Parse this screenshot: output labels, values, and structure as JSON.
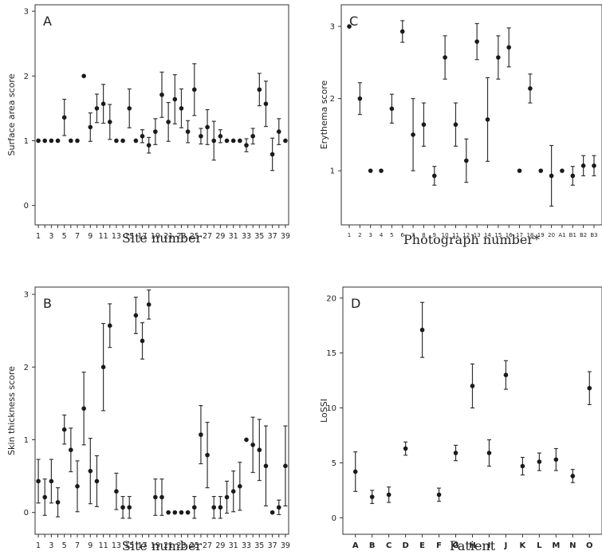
{
  "chart_data": [
    {
      "type": "scatter",
      "panel": "A",
      "xlabel": "Site number",
      "ylabel": "Surface area score",
      "ylim": [
        -0.3,
        3.1
      ],
      "yticks": [
        0,
        1,
        2,
        3
      ],
      "x_tick_labels": [
        "1",
        "3",
        "5",
        "7",
        "9",
        "11",
        "13",
        "15",
        "17",
        "19",
        "21",
        "23",
        "25",
        "27",
        "29",
        "31",
        "33",
        "35",
        "37",
        "39"
      ],
      "x": [
        1,
        2,
        3,
        4,
        5,
        6,
        7,
        8,
        9,
        10,
        11,
        12,
        13,
        14,
        15,
        16,
        17,
        18,
        19,
        20,
        21,
        22,
        23,
        24,
        25,
        26,
        27,
        28,
        29,
        30,
        31,
        32,
        33,
        34,
        35,
        36,
        37,
        38,
        39
      ],
      "values": [
        1,
        1,
        1,
        1,
        1.36,
        1,
        1,
        2,
        1.21,
        1.5,
        1.57,
        1.29,
        1,
        1,
        1.5,
        1,
        1.07,
        0.93,
        1.14,
        1.71,
        1.29,
        1.64,
        1.5,
        1.14,
        1.79,
        1.07,
        1.21,
        1,
        1.07,
        1,
        1,
        1,
        0.93,
        1.07,
        1.79,
        1.57,
        0.79,
        1.14,
        1
      ],
      "errors": [
        0,
        0,
        0,
        0,
        0.28,
        0,
        0,
        0,
        0.22,
        0.22,
        0.3,
        0.27,
        0,
        0,
        0.3,
        0,
        0.1,
        0.12,
        0.2,
        0.35,
        0.3,
        0.38,
        0.3,
        0.17,
        0.4,
        0.12,
        0.27,
        0.3,
        0.1,
        0,
        0,
        0,
        0.1,
        0.12,
        0.25,
        0.35,
        0.25,
        0.2,
        0
      ]
    },
    {
      "type": "scatter",
      "panel": "C",
      "xlabel": "Photograph number*",
      "ylabel": "Erythema score",
      "ylim": [
        0.25,
        3.3
      ],
      "yticks": [
        1,
        2,
        3
      ],
      "categories": [
        "1",
        "2",
        "3",
        "4",
        "5",
        "6",
        "7",
        "8",
        "9",
        "10",
        "11",
        "12",
        "13",
        "14",
        "15",
        "16",
        "17",
        "18",
        "19",
        "20",
        "A1",
        "B1",
        "B2",
        "B3"
      ],
      "values": [
        3,
        2,
        1,
        1,
        1.86,
        2.93,
        1.5,
        1.64,
        0.93,
        2.57,
        1.64,
        1.14,
        2.79,
        1.71,
        2.57,
        2.71,
        1,
        2.14,
        1,
        0.93,
        1,
        0.93,
        1.07,
        1.07
      ],
      "errors": [
        0,
        0.22,
        0,
        0,
        0.2,
        0.15,
        0.5,
        0.3,
        0.13,
        0.3,
        0.3,
        0.3,
        0.25,
        0.58,
        0.3,
        0.27,
        0,
        0.2,
        0,
        0.42,
        0,
        0.13,
        0.14,
        0.14
      ]
    },
    {
      "type": "scatter",
      "panel": "B",
      "xlabel": "Site number",
      "ylabel": "Skin thickness score",
      "ylim": [
        -0.3,
        3.1
      ],
      "yticks": [
        0,
        1,
        2,
        3
      ],
      "x_tick_labels": [
        "1",
        "3",
        "5",
        "7",
        "9",
        "11",
        "13",
        "15",
        "17",
        "19",
        "21",
        "23",
        "25",
        "27",
        "29",
        "31",
        "33",
        "35",
        "37",
        "39"
      ],
      "x": [
        1,
        2,
        3,
        4,
        5,
        6,
        7,
        8,
        9,
        10,
        11,
        12,
        13,
        14,
        15,
        16,
        17,
        18,
        19,
        20,
        21,
        22,
        23,
        24,
        25,
        26,
        27,
        28,
        29,
        30,
        31,
        32,
        33,
        34,
        35,
        36,
        37,
        38,
        39
      ],
      "values": [
        0.43,
        0.21,
        0.43,
        0.14,
        1.14,
        0.86,
        0.36,
        1.43,
        0.57,
        0.43,
        2,
        2.57,
        0.29,
        0.07,
        0.07,
        2.71,
        2.36,
        2.86,
        0.21,
        0.21,
        0,
        0,
        0,
        0,
        0.07,
        1.07,
        0.79,
        0.07,
        0.07,
        0.21,
        0.29,
        0.36,
        1,
        0.93,
        0.86,
        0.64,
        0,
        0.07,
        0.64
      ],
      "errors": [
        0.3,
        0.25,
        0.3,
        0.2,
        0.2,
        0.3,
        0.35,
        0.5,
        0.45,
        0.35,
        0.6,
        0.3,
        0.25,
        0.15,
        0.15,
        0.25,
        0.25,
        0.2,
        0.25,
        0.25,
        0,
        0,
        0,
        0,
        0.15,
        0.4,
        0.45,
        0.15,
        0.15,
        0.22,
        0.28,
        0.33,
        0,
        0.38,
        0.42,
        0.55,
        0,
        0.1,
        0.55
      ]
    },
    {
      "type": "scatter",
      "panel": "D",
      "xlabel": "Patient",
      "ylabel": "LoSSI",
      "ylim": [
        -1.5,
        21
      ],
      "yticks": [
        0,
        5,
        10,
        15,
        20
      ],
      "categories": [
        "A",
        "B",
        "C",
        "D",
        "E",
        "F",
        "G",
        "H",
        "I",
        "J",
        "K",
        "L",
        "M",
        "N",
        "O"
      ],
      "values": [
        4.2,
        1.9,
        2.1,
        6.3,
        17.1,
        2.1,
        5.9,
        12,
        5.9,
        13,
        4.7,
        5.1,
        5.3,
        3.8,
        11.8
      ],
      "errors": [
        1.8,
        0.6,
        0.7,
        0.6,
        2.5,
        0.6,
        0.7,
        2,
        1.2,
        1.3,
        0.8,
        0.8,
        1,
        0.6,
        1.5
      ]
    }
  ]
}
